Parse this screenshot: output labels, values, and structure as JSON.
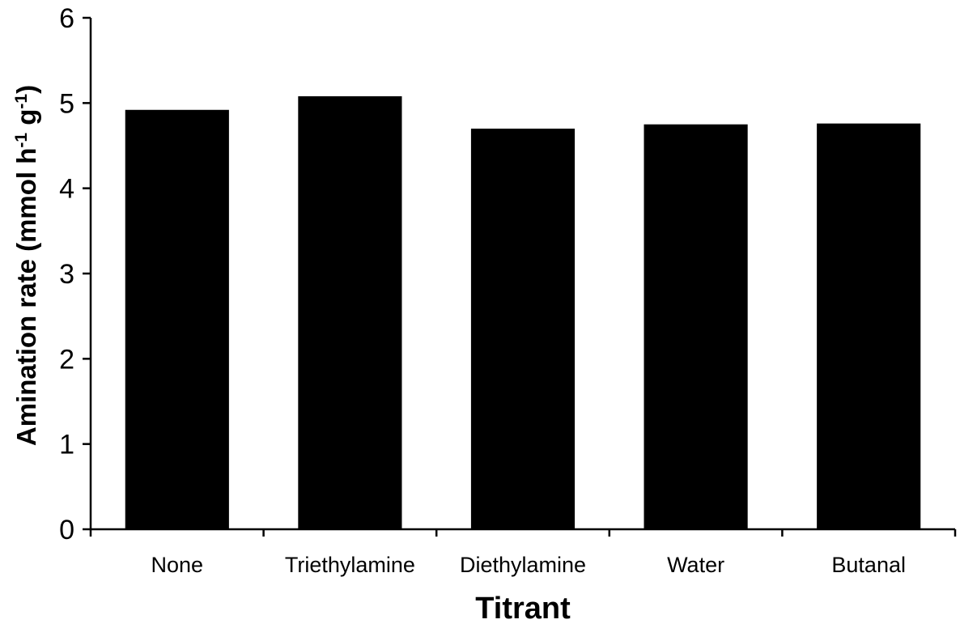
{
  "chart_data": {
    "type": "bar",
    "title": "",
    "xlabel": "Titrant",
    "ylabel": {
      "text_main": "Amination rate (mmol h",
      "sup1": "-1",
      "text_mid": " g",
      "sup2": "-1",
      "text_end": ")"
    },
    "categories": [
      "None",
      "Triethylamine",
      "Diethylamine",
      "Water",
      "Butanal"
    ],
    "values": [
      4.92,
      5.08,
      4.7,
      4.75,
      4.76
    ],
    "ylim": [
      0,
      6
    ],
    "yticks": [
      "0",
      "1",
      "2",
      "3",
      "4",
      "5",
      "6"
    ],
    "grid": false,
    "legend": "none",
    "bar_color": "#000000"
  }
}
